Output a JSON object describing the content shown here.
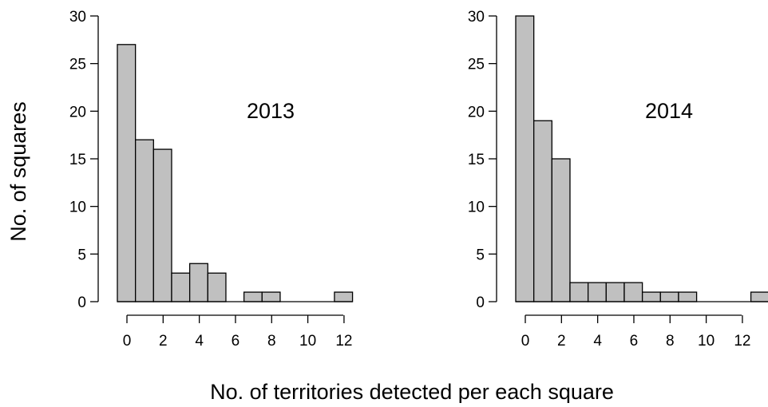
{
  "figure": {
    "ylabel": "No. of squares",
    "xlabel": "No. of territories detected per each square"
  },
  "chart_data": [
    {
      "type": "bar",
      "title": "2013",
      "xlabel": "No. of territories detected per each square",
      "ylabel": "No. of squares",
      "bin_edges": [
        0,
        1,
        2,
        3,
        4,
        5,
        6,
        7,
        8,
        9,
        10,
        11,
        12,
        13
      ],
      "values": [
        27,
        17,
        16,
        3,
        4,
        3,
        0,
        1,
        1,
        0,
        0,
        0,
        1
      ],
      "ylim": [
        0,
        30
      ],
      "yticks": [
        0,
        5,
        10,
        15,
        20,
        25,
        30
      ],
      "xticks": [
        0,
        2,
        4,
        6,
        8,
        10,
        12
      ],
      "grid": false
    },
    {
      "type": "bar",
      "title": "2014",
      "xlabel": "No. of territories detected per each square",
      "ylabel": "No. of squares",
      "bin_edges": [
        0,
        1,
        2,
        3,
        4,
        5,
        6,
        7,
        8,
        9,
        10,
        11,
        12,
        13,
        14
      ],
      "values": [
        30,
        19,
        15,
        2,
        2,
        2,
        2,
        1,
        1,
        1,
        0,
        0,
        0,
        1
      ],
      "ylim": [
        0,
        30
      ],
      "yticks": [
        0,
        5,
        10,
        15,
        20,
        25,
        30
      ],
      "xticks": [
        0,
        2,
        4,
        6,
        8,
        10,
        12
      ],
      "grid": false
    }
  ]
}
